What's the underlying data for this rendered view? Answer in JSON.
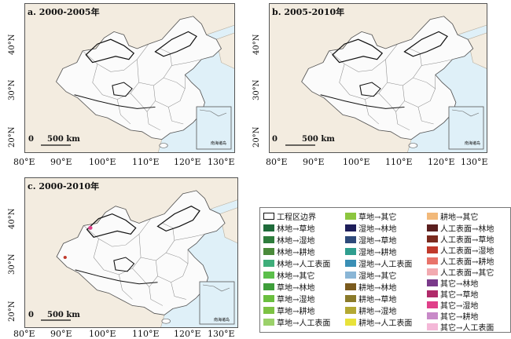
{
  "panels": [
    {
      "label": "a. 2000-2005年"
    },
    {
      "label": "b. 2005-2010年"
    },
    {
      "label": "c. 2000-2010年"
    }
  ],
  "axes": {
    "x_ticks": [
      "80°E",
      "90°E",
      "100°E",
      "110°E",
      "120°E",
      "130°E"
    ],
    "y_ticks": [
      "40°N",
      "30°N",
      "20°N"
    ]
  },
  "scale_bar": {
    "zero": "0",
    "distance": "500 km"
  },
  "inset": {
    "label": "南海诸岛"
  },
  "legend": {
    "items": [
      {
        "label": "工程区边界",
        "color": "#ffffff",
        "outline": true
      },
      {
        "label": "林地→草地",
        "color": "#1f6b3a"
      },
      {
        "label": "林地→湿地",
        "color": "#2e7d3c"
      },
      {
        "label": "林地→耕地",
        "color": "#4a8a3a"
      },
      {
        "label": "林地→人工表面",
        "color": "#3fae7a"
      },
      {
        "label": "林地→其它",
        "color": "#5bbf4a"
      },
      {
        "label": "草地→林地",
        "color": "#3e9e3a"
      },
      {
        "label": "草地→湿地",
        "color": "#6abf3f"
      },
      {
        "label": "草地→耕地",
        "color": "#7cc243"
      },
      {
        "label": "草地→人工表面",
        "color": "#9bd16a"
      },
      {
        "label": "草地→其它",
        "color": "#8cc63f"
      },
      {
        "label": "湿地→林地",
        "color": "#1e1e5a"
      },
      {
        "label": "湿地→草地",
        "color": "#2e4a7a"
      },
      {
        "label": "湿地→耕地",
        "color": "#2f9e8f"
      },
      {
        "label": "湿地→人工表面",
        "color": "#3a8fb5"
      },
      {
        "label": "湿地→其它",
        "color": "#8ab6d6"
      },
      {
        "label": "耕地→林地",
        "color": "#7a5a1e"
      },
      {
        "label": "耕地→草地",
        "color": "#8a7a2a"
      },
      {
        "label": "耕地→湿地",
        "color": "#b3a832"
      },
      {
        "label": "耕地→人工表面",
        "color": "#e8e23a"
      },
      {
        "label": "耕地→其它",
        "color": "#f2b97a"
      },
      {
        "label": "人工表面→林地",
        "color": "#5a1f1f"
      },
      {
        "label": "人工表面→草地",
        "color": "#7a2a1e"
      },
      {
        "label": "人工表面→湿地",
        "color": "#c0392b"
      },
      {
        "label": "人工表面→耕地",
        "color": "#e8736a"
      },
      {
        "label": "人工表面→其它",
        "color": "#f2aab0"
      },
      {
        "label": "其它→林地",
        "color": "#7a3a8a"
      },
      {
        "label": "其它→草地",
        "color": "#b02a6a"
      },
      {
        "label": "其它→湿地",
        "color": "#e0408a"
      },
      {
        "label": "其它→耕地",
        "color": "#c88ac8"
      },
      {
        "label": "其它→人工表面",
        "color": "#f4b8d8"
      }
    ]
  }
}
